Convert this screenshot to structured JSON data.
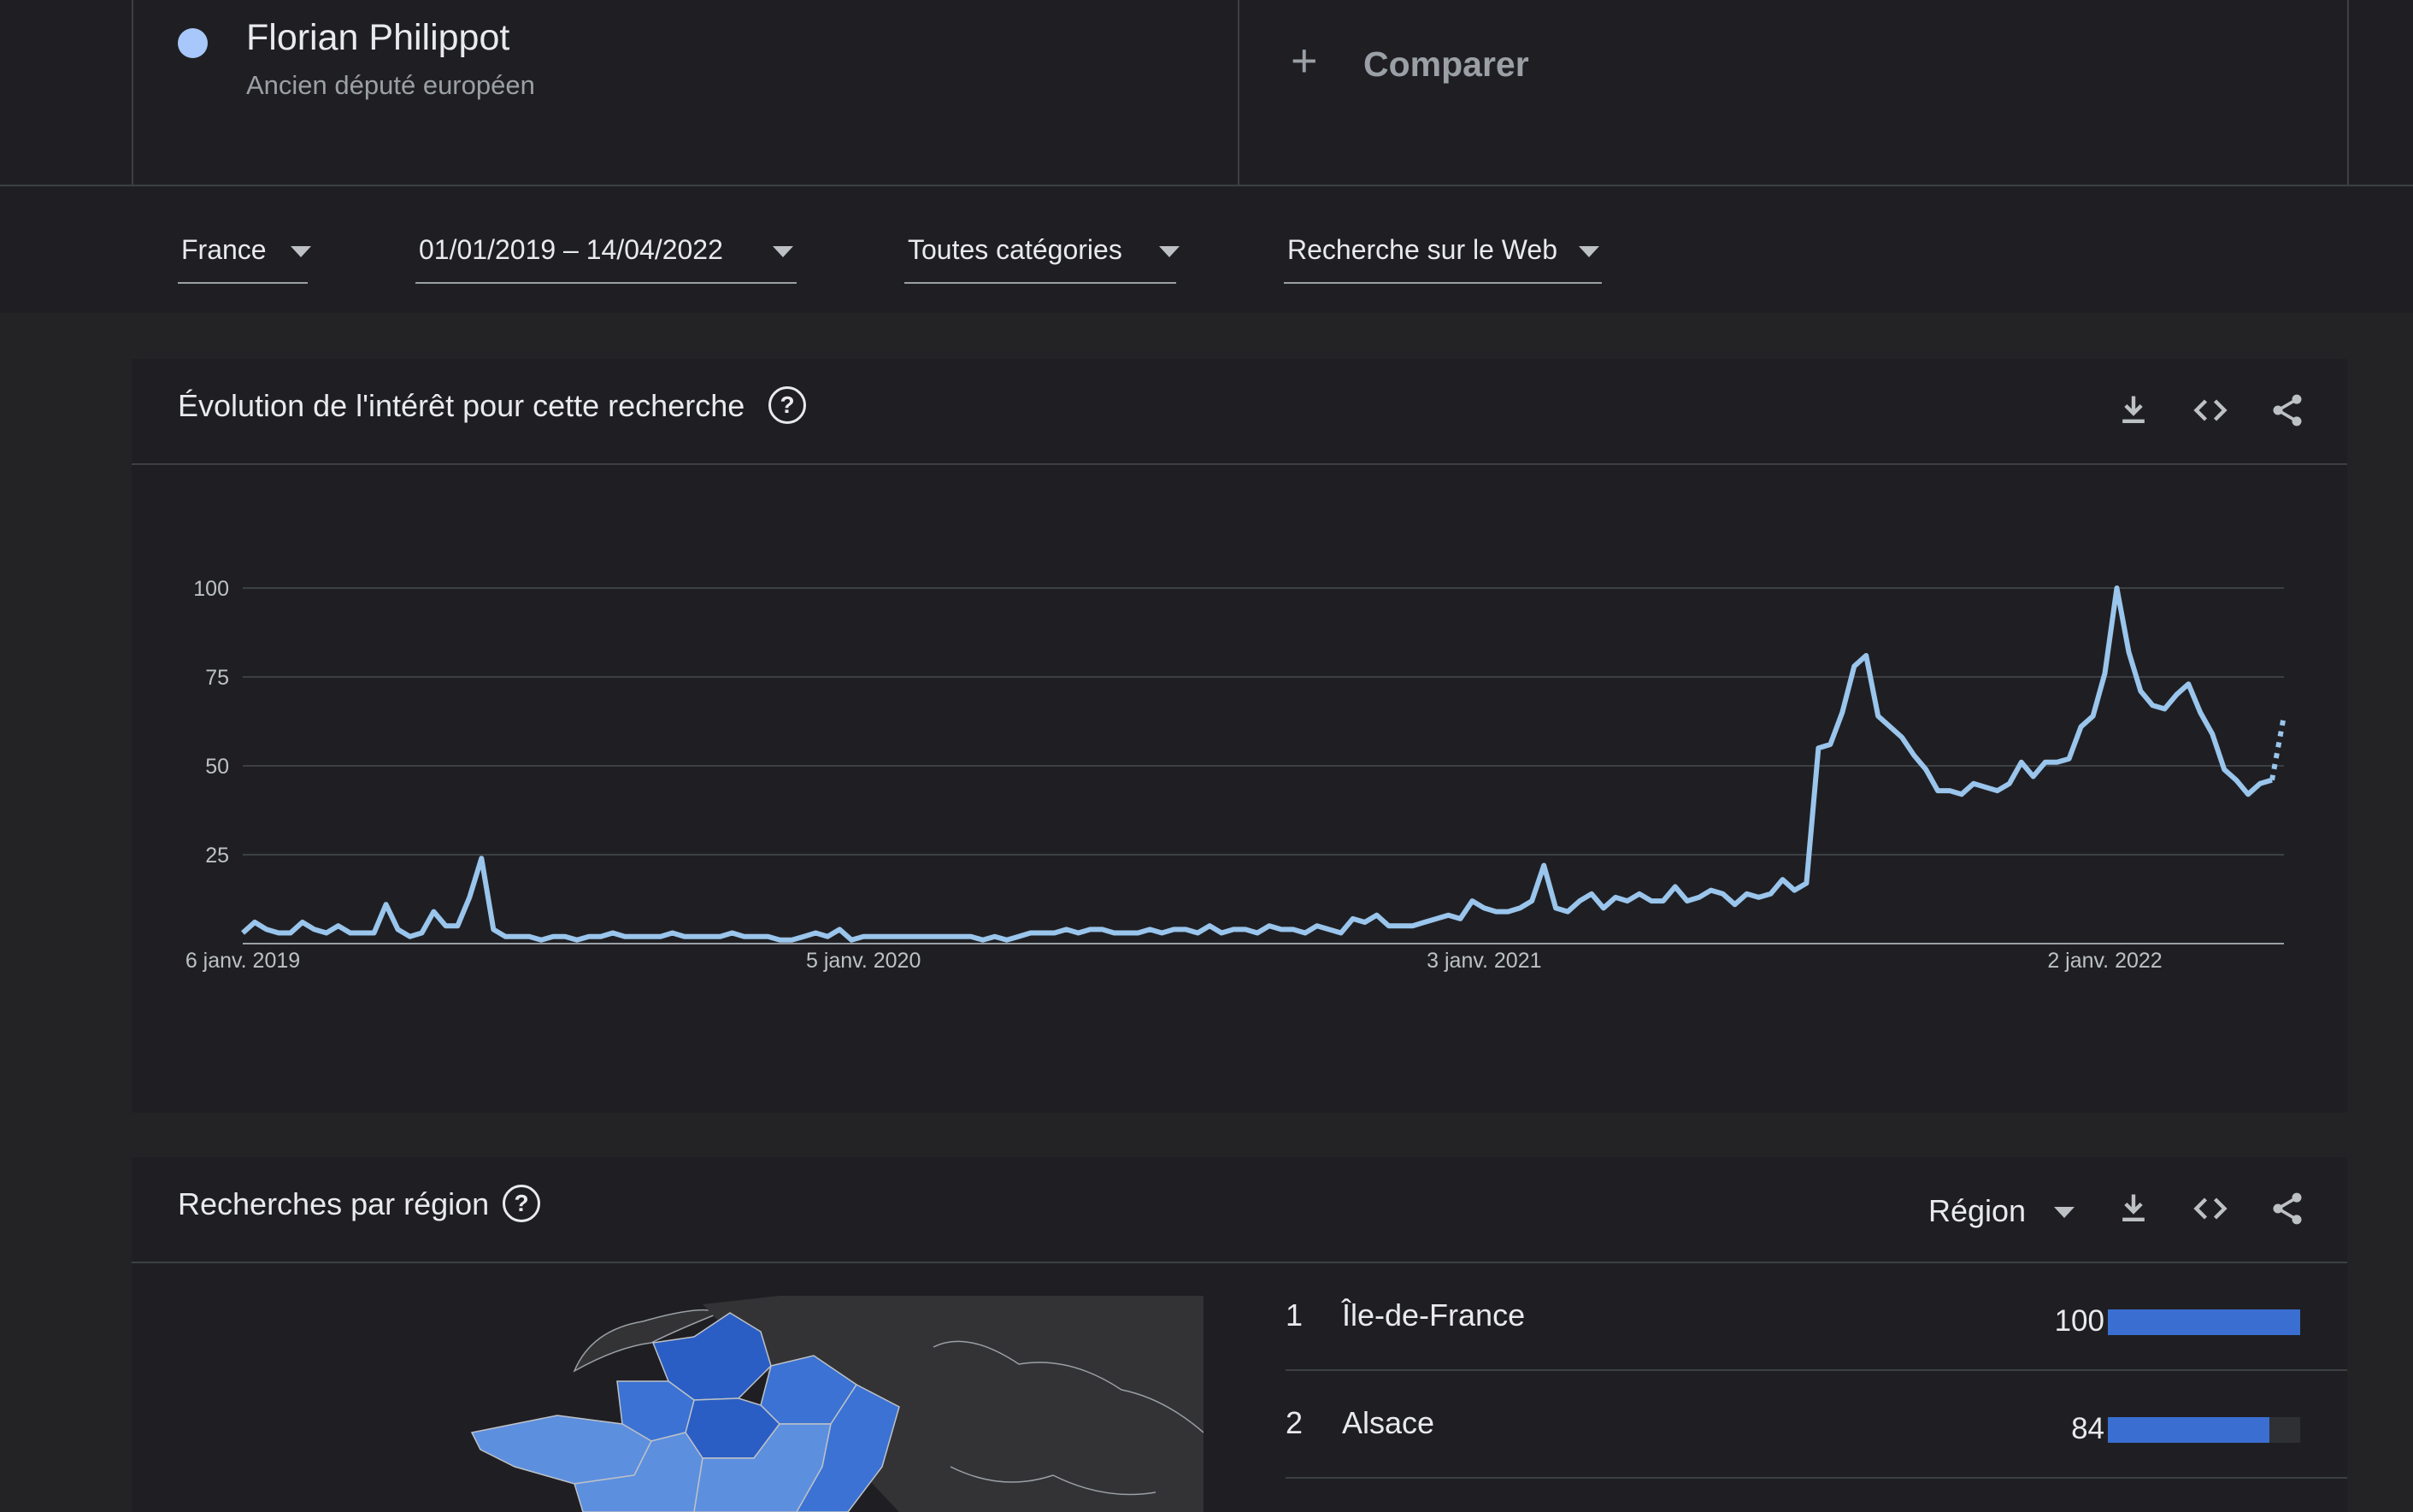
{
  "colors": {
    "term_dot": "#a8c7fa",
    "series_line": "#9ac5ec",
    "bar_fill": "#3a6fd1",
    "map_region_dark": "#2a5ec4",
    "map_region_mid": "#3b72d4",
    "map_region_light": "#5d8fdf"
  },
  "terms": [
    {
      "name": "Florian Philippot",
      "subtitle": "Ancien député européen"
    }
  ],
  "compare": {
    "icon": "plus-icon",
    "label": "Comparer"
  },
  "filters": {
    "country": "France",
    "date_range": "01/01/2019 – 14/04/2022",
    "category": "Toutes catégories",
    "search_type": "Recherche sur le Web"
  },
  "interest_panel": {
    "title": "Évolution de l'intérêt pour cette recherche",
    "icons": [
      "help-icon",
      "download-icon",
      "embed-icon",
      "share-icon"
    ]
  },
  "chart_data": {
    "type": "line",
    "ylim": [
      0,
      100
    ],
    "yticks": [
      25,
      50,
      75,
      100
    ],
    "xtick_labels": [
      "6 janv. 2019",
      "5 janv. 2020",
      "3 janv. 2021",
      "2 janv. 2022"
    ],
    "xtick_index": [
      0,
      52,
      104,
      156
    ],
    "grid": true,
    "partial_tail": true,
    "series": [
      {
        "values": [
          3,
          6,
          4,
          3,
          3,
          6,
          4,
          3,
          5,
          3,
          3,
          3,
          11,
          4,
          2,
          3,
          9,
          5,
          5,
          13,
          24,
          4,
          2,
          2,
          2,
          1,
          2,
          2,
          1,
          2,
          2,
          3,
          2,
          2,
          2,
          2,
          3,
          2,
          2,
          2,
          2,
          3,
          2,
          2,
          2,
          1,
          1,
          2,
          3,
          2,
          4,
          1,
          2,
          2,
          2,
          2,
          2,
          2,
          2,
          2,
          2,
          2,
          1,
          2,
          1,
          2,
          3,
          3,
          3,
          4,
          3,
          4,
          4,
          3,
          3,
          3,
          4,
          3,
          4,
          4,
          3,
          5,
          3,
          4,
          4,
          3,
          5,
          4,
          4,
          3,
          5,
          4,
          3,
          7,
          6,
          8,
          5,
          5,
          5,
          6,
          7,
          8,
          7,
          12,
          10,
          9,
          9,
          10,
          12,
          22,
          10,
          9,
          12,
          14,
          10,
          13,
          12,
          14,
          12,
          12,
          16,
          12,
          13,
          15,
          14,
          11,
          14,
          13,
          14,
          18,
          15,
          17,
          55,
          56,
          65,
          78,
          81,
          64,
          61,
          58,
          53,
          49,
          43,
          43,
          42,
          45,
          44,
          43,
          45,
          51,
          47,
          51,
          51,
          52,
          61,
          64,
          76,
          100,
          82,
          71,
          67,
          66,
          70,
          73,
          65,
          59,
          49,
          46,
          42,
          45,
          46,
          64
        ]
      }
    ]
  },
  "region_panel": {
    "title": "Recherches par région",
    "resolution_select": "Région",
    "icons": [
      "help-icon",
      "download-icon",
      "embed-icon",
      "share-icon"
    ],
    "rows": [
      {
        "rank": "1",
        "name": "Île-de-France",
        "value": "100",
        "score": 100
      },
      {
        "rank": "2",
        "name": "Alsace",
        "value": "84",
        "score": 84
      }
    ]
  }
}
